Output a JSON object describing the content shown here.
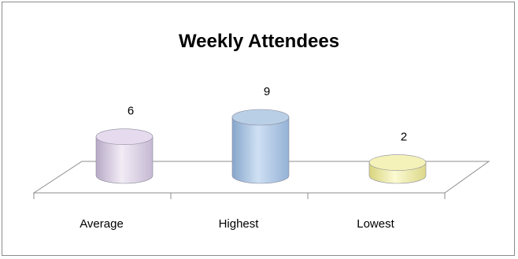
{
  "chart_data": {
    "type": "bar",
    "title": "Weekly Attendees",
    "categories": [
      "Average",
      "Highest",
      "Lowest"
    ],
    "values": [
      6,
      9,
      2
    ],
    "data_labels": [
      "6",
      "9",
      "2"
    ],
    "ylim": [
      0,
      9
    ],
    "grid": false,
    "legend": "none",
    "bar_colors": [
      "#e6dbee",
      "#b9cfe6",
      "#f4f2b8"
    ]
  }
}
